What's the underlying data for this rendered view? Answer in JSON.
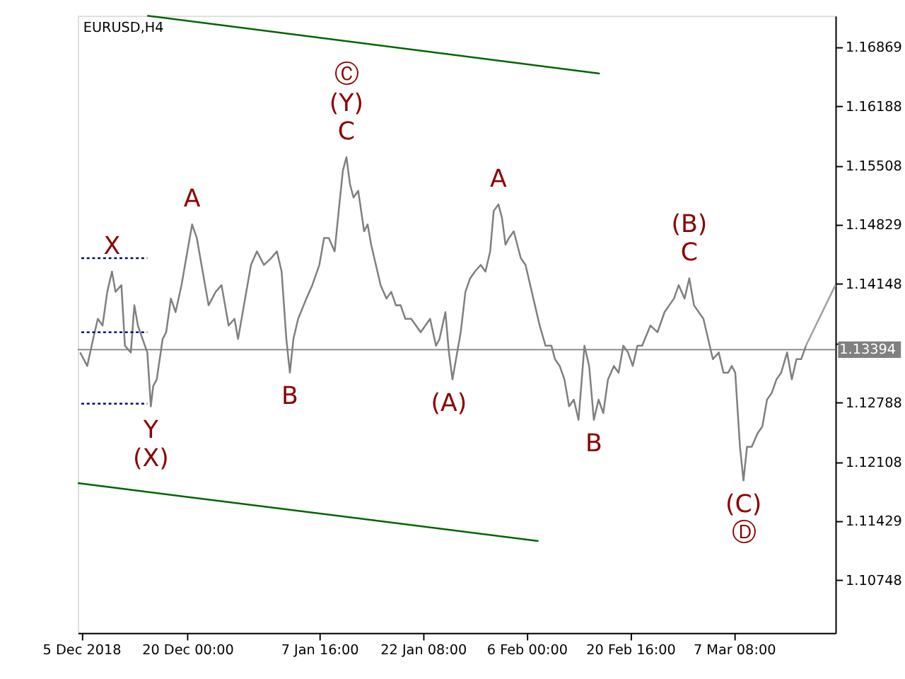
{
  "chart_data": {
    "type": "line",
    "title": "EURUSD,H4",
    "xlim": [
      "2018-12-04T12:00",
      "2019-03-21T16:00"
    ],
    "ylim": [
      1.10145,
      1.17224
    ],
    "xticks": [
      {
        "value": "2018-12-05T00:00",
        "label": "5 Dec 2018"
      },
      {
        "value": "2018-12-20T00:00",
        "label": "20 Dec 00:00"
      },
      {
        "value": "2019-01-07T16:00",
        "label": "7 Jan 16:00"
      },
      {
        "value": "2019-01-22T08:00",
        "label": "22 Jan 08:00"
      },
      {
        "value": "2019-02-06T00:00",
        "label": "6 Feb 00:00"
      },
      {
        "value": "2019-02-20T16:00",
        "label": "20 Feb 16:00"
      },
      {
        "value": "2019-03-07T08:00",
        "label": "7 Mar 08:00"
      }
    ],
    "yticks": [
      1.10748,
      1.11429,
      1.12108,
      1.12788,
      {
        "value": 1.13468,
        "label": null
      },
      1.14148,
      1.14829,
      1.15508,
      1.16188,
      1.16869
    ],
    "grid": false,
    "ref_lines": [
      {
        "axis": "y",
        "value": 1.13394,
        "label": "1.13394",
        "color": "#808080"
      }
    ],
    "series": [
      {
        "color": "#808080",
        "x": [
          "2018-12-04T20:00",
          "2018-12-05T20:00",
          "2018-12-06T16:00",
          "2018-12-07T08:00",
          "2018-12-08T00:00",
          "2018-12-08T16:00",
          "2018-12-09T08:00",
          "2018-12-09T20:00",
          "2018-12-10T16:00",
          "2018-12-11T04:00",
          "2018-12-12T00:00",
          "2018-12-12T12:00",
          "2018-12-13T00:00",
          "2018-12-13T16:00",
          "2018-12-14T08:00",
          "2018-12-14T20:00",
          "2018-12-15T04:00",
          "2018-12-15T16:00",
          "2018-12-16T12:00",
          "2018-12-17T00:00",
          "2018-12-17T16:00",
          "2018-12-18T08:00",
          "2018-12-19T04:00",
          "2018-12-19T20:00",
          "2018-12-20T16:00",
          "2018-12-21T08:00",
          "2018-12-22T00:00",
          "2018-12-23T00:00",
          "2018-12-24T00:00",
          "2018-12-24T20:00",
          "2018-12-25T20:00",
          "2018-12-26T16:00",
          "2018-12-27T04:00",
          "2018-12-28T00:00",
          "2018-12-29T00:00",
          "2018-12-29T20:00",
          "2018-12-30T20:00",
          "2018-12-31T20:00",
          "2019-01-01T16:00",
          "2019-01-02T08:00",
          "2019-01-03T00:00",
          "2019-01-03T12:00",
          "2019-01-04T00:00",
          "2019-01-04T16:00",
          "2019-01-05T20:00",
          "2019-01-06T16:00",
          "2019-01-07T16:00",
          "2019-01-08T08:00",
          "2019-01-09T00:00",
          "2019-01-09T20:00",
          "2019-01-10T12:00",
          "2019-01-11T00:00",
          "2019-01-11T12:00",
          "2019-01-12T00:00",
          "2019-01-12T12:00",
          "2019-01-13T04:00",
          "2019-01-14T00:00",
          "2019-01-14T12:00",
          "2019-01-15T00:00",
          "2019-01-15T16:00",
          "2019-01-16T08:00",
          "2019-01-17T04:00",
          "2019-01-17T20:00",
          "2019-01-18T12:00",
          "2019-01-19T04:00",
          "2019-01-19T20:00",
          "2019-01-20T16:00",
          "2019-01-21T08:00",
          "2019-01-22T00:00",
          "2019-01-22T16:00",
          "2019-01-23T08:00",
          "2019-01-24T04:00",
          "2019-01-24T16:00",
          "2019-01-25T12:00",
          "2019-01-26T00:00",
          "2019-01-26T12:00",
          "2019-01-27T04:00",
          "2019-01-27T16:00",
          "2019-01-28T08:00",
          "2019-01-29T00:00",
          "2019-01-29T16:00",
          "2019-01-30T12:00",
          "2019-01-31T04:00",
          "2019-01-31T20:00",
          "2019-02-01T08:00",
          "2019-02-02T00:00",
          "2019-02-02T12:00",
          "2019-02-03T00:00",
          "2019-02-03T12:00",
          "2019-02-04T04:00",
          "2019-02-05T04:00",
          "2019-02-05T20:00",
          "2019-02-06T12:00",
          "2019-02-07T04:00",
          "2019-02-07T20:00",
          "2019-02-08T16:00",
          "2019-02-09T12:00",
          "2019-02-10T00:00",
          "2019-02-10T16:00",
          "2019-02-11T08:00",
          "2019-02-12T00:00",
          "2019-02-12T16:00",
          "2019-02-13T08:00",
          "2019-02-14T04:00",
          "2019-02-14T20:00",
          "2019-02-15T12:00",
          "2019-02-16T04:00",
          "2019-02-16T20:00",
          "2019-02-17T12:00",
          "2019-02-18T08:00",
          "2019-02-19T00:00",
          "2019-02-19T16:00",
          "2019-02-20T08:00",
          "2019-02-21T00:00",
          "2019-02-21T16:00",
          "2019-02-22T08:00",
          "2019-02-23T12:00",
          "2019-02-24T12:00",
          "2019-02-25T12:00",
          "2019-02-26T04:00",
          "2019-02-26T20:00",
          "2019-02-27T12:00",
          "2019-02-28T08:00",
          "2019-03-01T00:00",
          "2019-03-01T16:00",
          "2019-03-02T08:00",
          "2019-03-03T00:00",
          "2019-03-03T16:00",
          "2019-03-04T08:00",
          "2019-03-05T04:00",
          "2019-03-05T20:00",
          "2019-03-06T12:00",
          "2019-03-07T00:00",
          "2019-03-07T12:00",
          "2019-03-08T04:00",
          "2019-03-08T16:00",
          "2019-03-09T04:00",
          "2019-03-09T20:00",
          "2019-03-10T16:00",
          "2019-03-11T08:00",
          "2019-03-12T00:00",
          "2019-03-12T16:00",
          "2019-03-13T08:00",
          "2019-03-14T00:00",
          "2019-03-14T20:00",
          "2019-03-15T12:00",
          "2019-03-16T04:00",
          "2019-03-16T20:00",
          "2019-03-17T12:00"
        ],
        "values": [
          1.13362,
          1.13207,
          1.13516,
          1.13748,
          1.13671,
          1.14057,
          1.14289,
          1.14057,
          1.14134,
          1.13439,
          1.13362,
          1.13903,
          1.13671,
          1.13516,
          1.13362,
          1.12744,
          1.12976,
          1.13053,
          1.13516,
          1.13594,
          1.1398,
          1.13825,
          1.14134,
          1.14443,
          1.1483,
          1.14675,
          1.14366,
          1.13903,
          1.14057,
          1.14134,
          1.13671,
          1.13748,
          1.13516,
          1.13903,
          1.14366,
          1.14521,
          1.14366,
          1.14443,
          1.14521,
          1.14289,
          1.13516,
          1.1313,
          1.13516,
          1.13748,
          1.1398,
          1.14134,
          1.14366,
          1.14675,
          1.14675,
          1.14521,
          1.15061,
          1.15448,
          1.15602,
          1.15293,
          1.15139,
          1.15216,
          1.14752,
          1.1483,
          1.14598,
          1.14366,
          1.14134,
          1.1398,
          1.14057,
          1.13903,
          1.13903,
          1.13748,
          1.13748,
          1.13671,
          1.13594,
          1.13671,
          1.13748,
          1.13439,
          1.13516,
          1.13825,
          1.13362,
          1.13053,
          1.13362,
          1.13594,
          1.14057,
          1.14212,
          1.14289,
          1.14366,
          1.14289,
          1.14521,
          1.14984,
          1.15061,
          1.14907,
          1.14598,
          1.14675,
          1.14752,
          1.14443,
          1.14366,
          1.14134,
          1.13903,
          1.13671,
          1.13439,
          1.13439,
          1.13285,
          1.13207,
          1.13053,
          1.12744,
          1.12821,
          1.12589,
          1.13439,
          1.13207,
          1.12589,
          1.12821,
          1.12667,
          1.13053,
          1.13207,
          1.1313,
          1.13439,
          1.13362,
          1.13207,
          1.13439,
          1.13439,
          1.13671,
          1.13594,
          1.13825,
          1.13903,
          1.1398,
          1.14134,
          1.1398,
          1.14212,
          1.13903,
          1.13825,
          1.13748,
          1.13516,
          1.13285,
          1.13362,
          1.1313,
          1.1313,
          1.13207,
          1.1313,
          1.1228,
          1.11894,
          1.1228,
          1.1228,
          1.12435,
          1.12512,
          1.12821,
          1.12898,
          1.13053,
          1.1313,
          1.13362,
          1.13053,
          1.13285,
          1.13285,
          1.13439
        ]
      },
      {
        "type": "line",
        "color": "#a0a0a0",
        "x": [
          "2019-03-17T12:00",
          "2019-03-21T16:00"
        ],
        "values": [
          1.13439,
          1.14134
        ]
      },
      {
        "type": "line",
        "color": "#006400",
        "x": [
          "2018-12-14T08:00",
          "2019-02-16T08:00"
        ],
        "values": [
          1.17224,
          1.1656
        ]
      },
      {
        "type": "line",
        "color": "#006400",
        "x": [
          "2018-12-04T12:00",
          "2019-02-07T16:00"
        ],
        "values": [
          1.11863,
          1.11199
        ]
      },
      {
        "type": "line",
        "color": "#000080",
        "line_style": "dotted",
        "x": [
          "2018-12-05T00:00",
          "2018-12-14T08:00"
        ],
        "values": [
          1.14443,
          1.14443
        ]
      },
      {
        "type": "line",
        "color": "#000080",
        "line_style": "dotted",
        "x": [
          "2018-12-05T00:00",
          "2018-12-14T08:00"
        ],
        "values": [
          1.13594,
          1.13594
        ]
      },
      {
        "type": "line",
        "color": "#000080",
        "line_style": "dotted",
        "x": [
          "2018-12-05T00:00",
          "2018-12-14T08:00"
        ],
        "values": [
          1.12775,
          1.12775
        ]
      }
    ],
    "annotations": [
      {
        "text": "X",
        "x": "2018-12-09T08:00",
        "y": 1.14289
      },
      {
        "text": "Y",
        "x": "2018-12-14T20:00",
        "y": 1.12744
      },
      {
        "text": "(X)",
        "x": "2018-12-14T20:00",
        "y": 1.12744
      },
      {
        "text": "A",
        "x": "2018-12-20T16:00",
        "y": 1.1483
      },
      {
        "text": "B",
        "x": "2019-01-03T12:00",
        "y": 1.1313
      },
      {
        "text": "C",
        "x": "2019-01-11T12:00",
        "y": 1.15602
      },
      {
        "text": "(Y)",
        "x": "2019-01-11T12:00",
        "y": 1.15602
      },
      {
        "text": "Ⓒ",
        "x": "2019-01-11T12:00",
        "y": 1.15602
      },
      {
        "text": "(A)",
        "x": "2019-01-26T00:00",
        "y": 1.13053
      },
      {
        "text": "A",
        "x": "2019-02-02T00:00",
        "y": 1.15061
      },
      {
        "text": "B",
        "x": "2019-02-15T12:00",
        "y": 1.12589
      },
      {
        "text": "C",
        "x": "2019-03-01T00:00",
        "y": 1.14212
      },
      {
        "text": "(B)",
        "x": "2019-03-01T00:00",
        "y": 1.14212
      },
      {
        "text": "(C)",
        "x": "2019-03-08T16:00",
        "y": 1.11894
      },
      {
        "text": "Ⓓ",
        "x": "2019-03-08T16:00",
        "y": 1.11894
      }
    ]
  }
}
